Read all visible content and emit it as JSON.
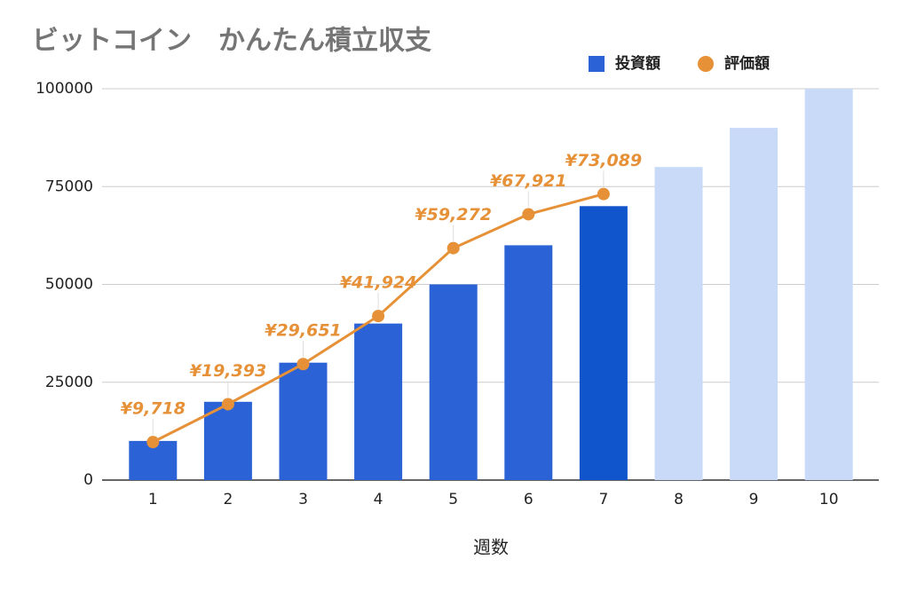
{
  "chart_data": {
    "type": "bar_line",
    "title": "ビットコイン　かんたん積立収支",
    "x_label": "週数",
    "categories": [
      "1",
      "2",
      "3",
      "4",
      "5",
      "6",
      "7",
      "8",
      "9",
      "10"
    ],
    "series": [
      {
        "name": "投資額",
        "type": "bar",
        "color": "#2b63d6",
        "colors": [
          "#2b63d6",
          "#2b63d6",
          "#2b63d6",
          "#2b63d6",
          "#2b63d6",
          "#2b63d6",
          "#1155cc",
          "#c9daf8",
          "#c9daf8",
          "#c9daf8"
        ],
        "values": [
          10000,
          20000,
          30000,
          40000,
          50000,
          60000,
          70000,
          80000,
          90000,
          100000
        ]
      },
      {
        "name": "評価額",
        "type": "line",
        "color": "#e69138",
        "values": [
          9718,
          19393,
          29651,
          41924,
          59272,
          67921,
          73089,
          null,
          null,
          null
        ],
        "value_labels": [
          "¥9,718",
          "¥19,393",
          "¥29,651",
          "¥41,924",
          "¥59,272",
          "¥67,921",
          "¥73,089",
          null,
          null,
          null
        ]
      }
    ],
    "ylim": [
      0,
      100000
    ],
    "yticks": [
      0,
      25000,
      50000,
      75000,
      100000
    ],
    "grid": true
  }
}
